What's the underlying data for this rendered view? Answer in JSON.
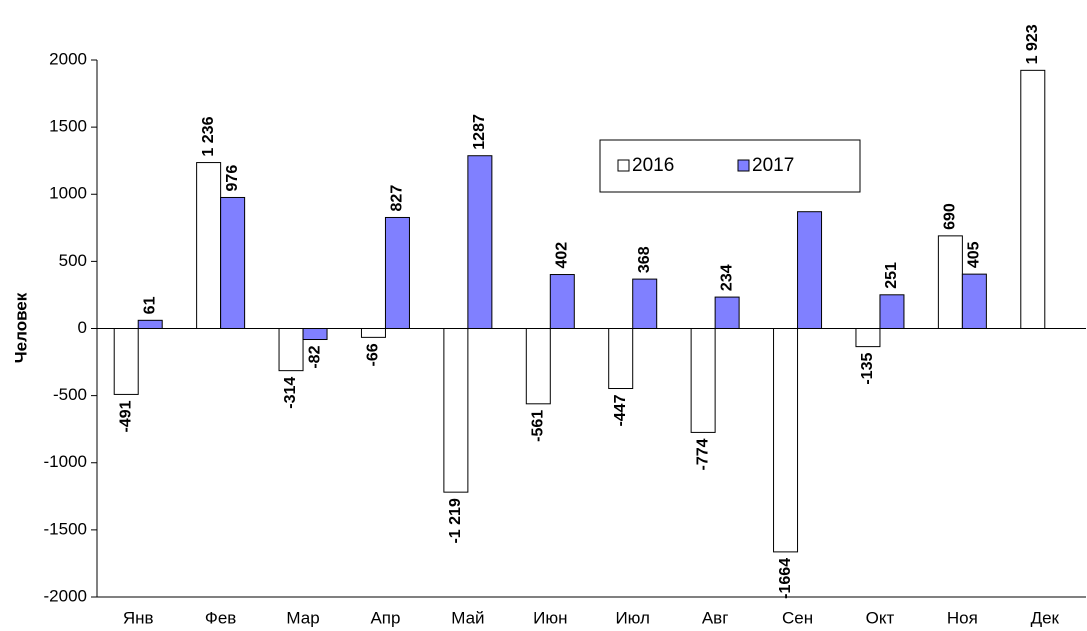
{
  "chart_data": {
    "type": "bar",
    "y_label": "Человек",
    "categories": [
      "Янв",
      "Фев",
      "Мар",
      "Апр",
      "Май",
      "Июн",
      "Июл",
      "Авг",
      "Сен",
      "Окт",
      "Ноя",
      "Дек"
    ],
    "series": [
      {
        "name": "2016",
        "color": "#ffffff",
        "values": [
          -491,
          1236,
          -314,
          -66,
          -1219,
          -561,
          -447,
          -774,
          -1664,
          -135,
          690,
          1923
        ],
        "value_labels": [
          "-491",
          "1 236",
          "-314",
          "-66",
          "-1 219",
          "-561",
          "-447",
          "-774",
          "-1664",
          "-135",
          "690",
          "1 923"
        ]
      },
      {
        "name": "2017",
        "color": "#8080ff",
        "values": [
          61,
          976,
          -82,
          827,
          1287,
          402,
          368,
          234,
          870,
          251,
          405,
          null
        ],
        "value_labels": [
          "61",
          "976",
          "-82",
          "827",
          "1287",
          "402",
          "368",
          "234",
          null,
          "251",
          "405",
          null
        ]
      }
    ],
    "ylim": [
      -2000,
      2000
    ],
    "yticks": [
      -2000,
      -1500,
      -1000,
      -500,
      0,
      500,
      1000,
      1500,
      2000
    ],
    "grid": false,
    "legend": "top-right"
  }
}
